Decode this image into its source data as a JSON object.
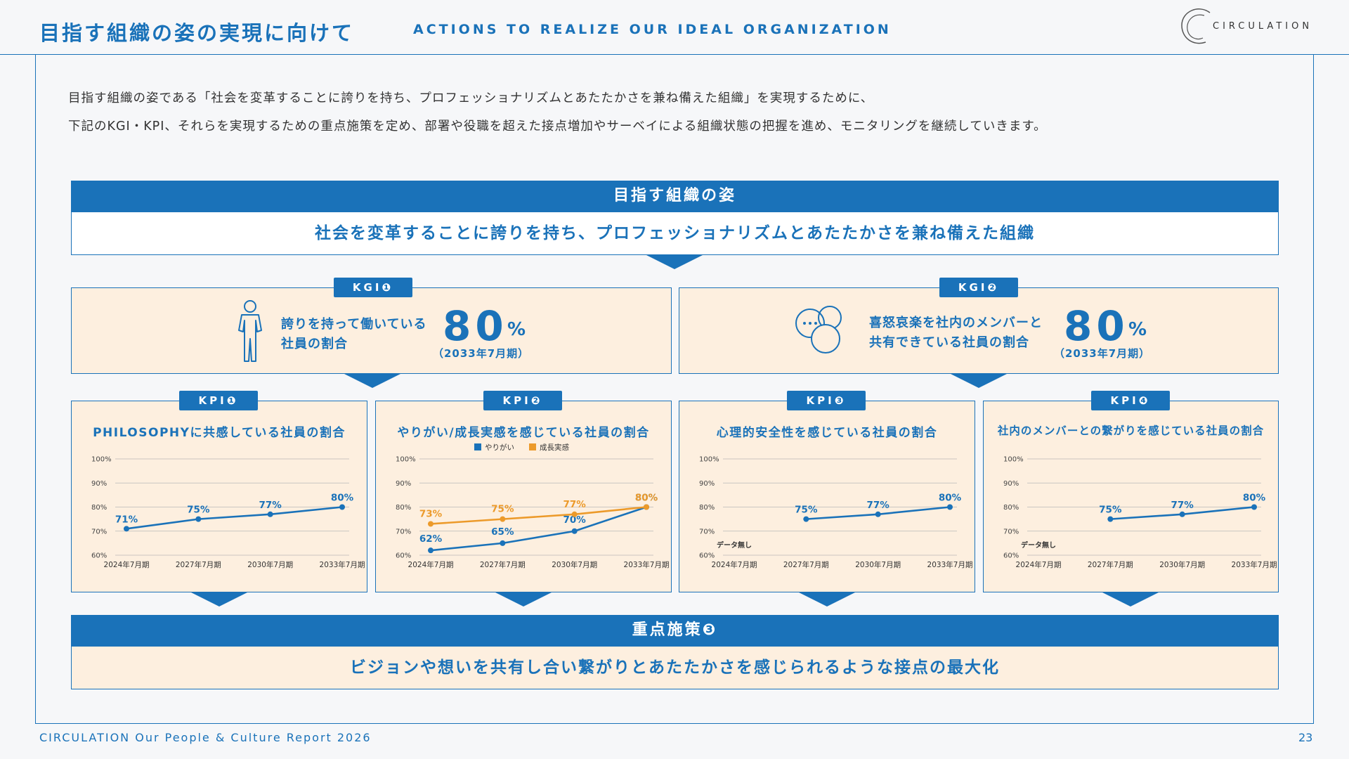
{
  "header": {
    "title": "目指す組織の姿の実現に向けて",
    "subtitle": "ACTIONS TO REALIZE OUR IDEAL ORGANIZATION",
    "logo_text": "CIRCULATION"
  },
  "intro": {
    "line1": "目指す組織の姿である「社会を変革することに誇りを持ち、プロフェッショナリズムとあたたかさを兼ね備えた組織」を実現するために、",
    "line2": "下記のKGI・KPI、それらを実現するための重点施策を定め、部署や役職を超えた接点増加やサーベイによる組織状態の把握を進め、モニタリングを継続していきます。"
  },
  "vision": {
    "heading": "目指す組織の姿",
    "body": "社会を変革することに誇りを持ち、プロフェッショナリズムとあたたかさを兼ね備えた組織"
  },
  "kgis": [
    {
      "tag": "KGI❶",
      "text1": "誇りを持って働いている",
      "text2": "社員の割合",
      "value": "80",
      "unit": "%",
      "date": "（2033年7月期）",
      "icon": "person-icon"
    },
    {
      "tag": "KGI❷",
      "text1": "喜怒哀楽を社内のメンバーと",
      "text2": "共有できている社員の割合",
      "value": "80",
      "unit": "%",
      "date": "（2033年7月期）",
      "icon": "chat-bubbles-icon"
    }
  ],
  "colors": {
    "primary": "#1a72b9",
    "secondary": "#ec9a2a",
    "card_bg": "#fdefdf"
  },
  "kpis": [
    {
      "tag": "KPI❶",
      "title": "PHILOSOPHYに共感している社員の割合"
    },
    {
      "tag": "KPI❷",
      "title": "やりがい/成長実感を感じている社員の割合"
    },
    {
      "tag": "KPI❸",
      "title": "心理的安全性を感じている社員の割合"
    },
    {
      "tag": "KPI❹",
      "title": "社内のメンバーとの繋がりを感じている社員の割合"
    }
  ],
  "chart_data": [
    {
      "type": "line",
      "categories": [
        "2024年7月期",
        "2027年7月期",
        "2030年7月期",
        "2033年7月期"
      ],
      "ylim": [
        60,
        100
      ],
      "yticks": [
        "60%",
        "70%",
        "80%",
        "90%",
        "100%"
      ],
      "series": [
        {
          "values": [
            71,
            75,
            77,
            80
          ],
          "labels": [
            "71%",
            "75%",
            "77%",
            "80%"
          ],
          "color": "#1a72b9"
        }
      ]
    },
    {
      "type": "line",
      "categories": [
        "2024年7月期",
        "2027年7月期",
        "2030年7月期",
        "2033年7月期"
      ],
      "ylim": [
        60,
        100
      ],
      "yticks": [
        "60%",
        "70%",
        "80%",
        "90%",
        "100%"
      ],
      "legend": "top-center",
      "series": [
        {
          "name": "やりがい",
          "values": [
            62,
            65,
            70,
            80
          ],
          "labels": [
            "62%",
            "65%",
            "70%",
            "80%"
          ],
          "color": "#1a72b9"
        },
        {
          "name": "成長実感",
          "values": [
            73,
            75,
            77,
            80
          ],
          "labels": [
            "73%",
            "75%",
            "77%",
            "80%"
          ],
          "color": "#ec9a2a"
        }
      ]
    },
    {
      "type": "line",
      "categories": [
        "2024年7月期",
        "2027年7月期",
        "2030年7月期",
        "2033年7月期"
      ],
      "ylim": [
        60,
        100
      ],
      "yticks": [
        "60%",
        "70%",
        "80%",
        "90%",
        "100%"
      ],
      "note": "データ無し",
      "series": [
        {
          "values": [
            null,
            75,
            77,
            80
          ],
          "labels": [
            "",
            "75%",
            "77%",
            "80%"
          ],
          "color": "#1a72b9"
        }
      ]
    },
    {
      "type": "line",
      "categories": [
        "2024年7月期",
        "2027年7月期",
        "2030年7月期",
        "2033年7月期"
      ],
      "ylim": [
        60,
        100
      ],
      "yticks": [
        "60%",
        "70%",
        "80%",
        "90%",
        "100%"
      ],
      "note": "データ無し",
      "series": [
        {
          "values": [
            null,
            75,
            77,
            80
          ],
          "labels": [
            "",
            "75%",
            "77%",
            "80%"
          ],
          "color": "#1a72b9"
        }
      ]
    }
  ],
  "focus": {
    "heading": "重点施策❸",
    "body": "ビジョンや想いを共有し合い繋がりとあたたかさを感じられるような接点の最大化"
  },
  "footer": {
    "left": "CIRCULATION Our People & Culture Report 2026",
    "page": "23"
  }
}
